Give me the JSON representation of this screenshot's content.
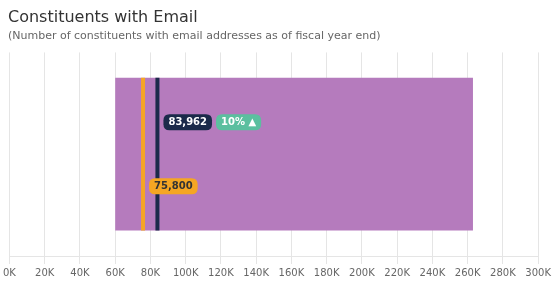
{
  "chart_data": {
    "type": "bar",
    "orientation": "horizontal",
    "title": "Constituents with Email",
    "subtitle": "(Number of constituents with email addresses as of fiscal year end)",
    "categories": [
      null
    ],
    "values": [
      [
        60000,
        263000
      ]
    ],
    "color": "#b57bbd",
    "markers": [
      {
        "value": 75800,
        "label": "75,800",
        "color": "#f5a623"
      },
      {
        "value": 83962,
        "label": "83,962",
        "color": "#1b2a4a"
      }
    ],
    "annotations": [
      {
        "text": "10% ▲",
        "color": "#5bbf9f"
      }
    ],
    "xlim": [
      0,
      300000
    ],
    "xticks": [
      {
        "value": 0,
        "label": "0K"
      },
      {
        "value": 20000,
        "label": "20K"
      },
      {
        "value": 40000,
        "label": "40K"
      },
      {
        "value": 60000,
        "label": "60K"
      },
      {
        "value": 80000,
        "label": "80K"
      },
      {
        "value": 100000,
        "label": "100K"
      },
      {
        "value": 120000,
        "label": "120K"
      },
      {
        "value": 140000,
        "label": "140K"
      },
      {
        "value": 160000,
        "label": "160K"
      },
      {
        "value": 180000,
        "label": "180K"
      },
      {
        "value": 200000,
        "label": "200K"
      },
      {
        "value": 220000,
        "label": "220K"
      },
      {
        "value": 240000,
        "label": "240K"
      },
      {
        "value": 260000,
        "label": "260K"
      },
      {
        "value": 280000,
        "label": "280K"
      },
      {
        "value": 300000,
        "label": "300K"
      }
    ],
    "grid": true,
    "tick_labels": "x"
  }
}
